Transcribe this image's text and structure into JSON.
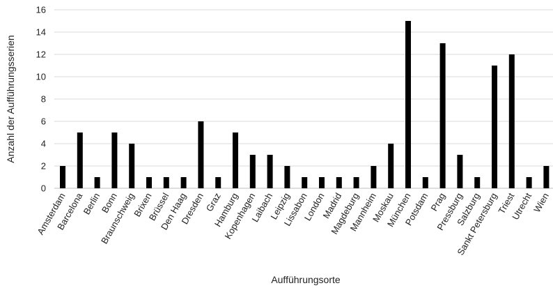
{
  "chart_data": {
    "type": "bar",
    "title": "",
    "xlabel": "Aufführungsorte",
    "ylabel": "Anzahl der Aufführungsserien",
    "ylim": [
      0,
      16
    ],
    "yticks": [
      0,
      2,
      4,
      6,
      8,
      10,
      12,
      14,
      16
    ],
    "grid": true,
    "bar_color": "#000000",
    "categories": [
      "Amsterdam",
      "Barcelona",
      "Berlin",
      "Bonn",
      "Braunschweig",
      "Brixen",
      "Brüssel",
      "Den Haag",
      "Dresden",
      "Graz",
      "Hamburg",
      "Kopenhagen",
      "Laibach",
      "Leipzig",
      "Lissabon",
      "London",
      "Madrid",
      "Magdeburg",
      "Mannheim",
      "Moskau",
      "München",
      "Potsdam",
      "Prag",
      "Pressburg",
      "Salzburg",
      "Sankt Petersburg",
      "Triest",
      "Utrecht",
      "Wien"
    ],
    "values": [
      2,
      5,
      1,
      5,
      4,
      1,
      1,
      1,
      6,
      1,
      5,
      3,
      3,
      2,
      1,
      1,
      1,
      1,
      2,
      4,
      15,
      1,
      13,
      3,
      1,
      11,
      12,
      1,
      2
    ]
  }
}
